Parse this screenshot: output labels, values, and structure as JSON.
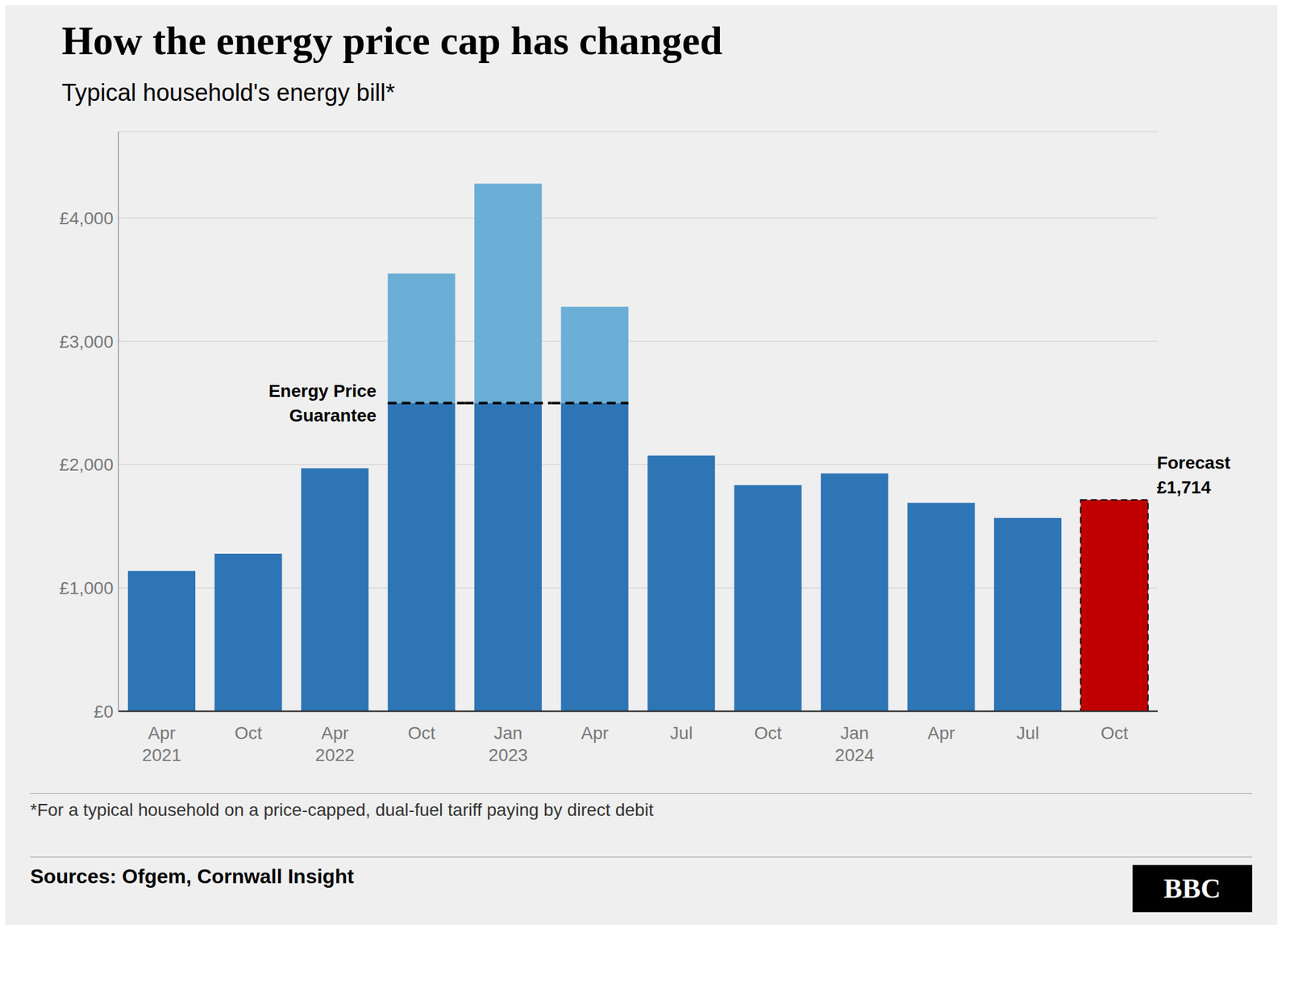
{
  "chart_data": {
    "type": "bar",
    "title": "How the energy price cap has changed",
    "subtitle": "Typical household's energy bill*",
    "footnote": "*For a typical household on a price-capped, dual-fuel tariff paying by direct debit",
    "source": "Sources: Ofgem, Cornwall Insight",
    "logo": "BBC",
    "background_color": "#efefef",
    "categories": [
      "Apr\n2021",
      "Oct",
      "Apr\n2022",
      "Oct",
      "Jan\n2023",
      "Apr",
      "Jul",
      "Oct",
      "Jan\n2024",
      "Apr",
      "Jul",
      "Oct"
    ],
    "stacked": true,
    "series": [
      {
        "colors": [
          "#2e75b6",
          "#2e75b6",
          "#2e75b6",
          "#2e75b6",
          "#2e75b6",
          "#2e75b6",
          "#2e75b6",
          "#2e75b6",
          "#2e75b6",
          "#2e75b6",
          "#2e75b6",
          "#c00000"
        ],
        "values": [
          1138,
          1277,
          1971,
          2500,
          2500,
          2500,
          2074,
          1834,
          1928,
          1690,
          1568,
          1714
        ]
      },
      {
        "color": "#6baed6",
        "values": [
          null,
          null,
          null,
          1049,
          1779,
          780,
          null,
          null,
          null,
          null,
          null,
          null
        ]
      }
    ],
    "annotations": [
      {
        "text": "Energy Price\nGuarantee",
        "y": 2500,
        "x_from": 3,
        "x_to": 5,
        "line_style": "dashed"
      },
      {
        "text": "Forecast\n£1,714",
        "x": 11
      }
    ],
    "ylim": [
      0,
      4700
    ],
    "yticks": [
      {
        "value": 0,
        "label": "£0"
      },
      {
        "value": 1000,
        "label": "£1,000"
      },
      {
        "value": 2000,
        "label": "£2,000"
      },
      {
        "value": 3000,
        "label": "£3,000"
      },
      {
        "value": 4000,
        "label": "£4,000"
      }
    ],
    "grid": true
  }
}
